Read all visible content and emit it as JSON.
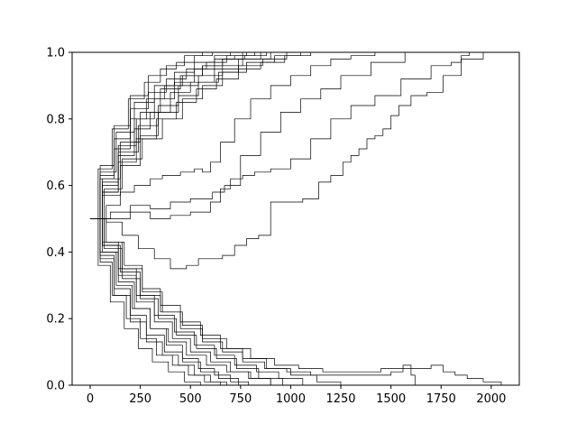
{
  "chart_data": {
    "type": "line",
    "title": "",
    "xlabel": "",
    "ylabel": "",
    "xlim": [
      -90,
      2140
    ],
    "ylim": [
      0.0,
      1.0
    ],
    "x_ticks": [
      0,
      250,
      500,
      750,
      1000,
      1250,
      1500,
      1750,
      2000
    ],
    "x_tick_labels": [
      "0",
      "250",
      "500",
      "750",
      "1000",
      "1250",
      "1500",
      "1750",
      "2000"
    ],
    "y_ticks": [
      0.0,
      0.2,
      0.4,
      0.6,
      0.8,
      1.0
    ],
    "y_tick_labels": [
      "0.0",
      "0.2",
      "0.4",
      "0.6",
      "0.8",
      "1.0"
    ],
    "grid": false,
    "legend": "none",
    "line_color": "#000000",
    "series": [
      {
        "x": [
          0,
          60,
          150,
          250,
          350,
          450,
          560,
          660,
          770,
          880
        ],
        "y": [
          0.5,
          0.62,
          0.73,
          0.82,
          0.89,
          0.93,
          0.96,
          0.98,
          0.99,
          1.0
        ]
      },
      {
        "x": [
          0,
          60,
          140,
          230,
          320,
          420,
          520,
          620,
          720,
          820
        ],
        "y": [
          0.5,
          0.6,
          0.72,
          0.8,
          0.86,
          0.91,
          0.95,
          0.98,
          0.99,
          1.0
        ]
      },
      {
        "x": [
          0,
          50,
          130,
          220,
          320,
          420,
          520,
          620,
          700
        ],
        "y": [
          0.5,
          0.64,
          0.76,
          0.85,
          0.9,
          0.94,
          0.97,
          0.99,
          1.0
        ]
      },
      {
        "x": [
          0,
          60,
          140,
          240,
          340,
          440,
          540,
          660,
          760,
          900
        ],
        "y": [
          0.5,
          0.58,
          0.7,
          0.78,
          0.84,
          0.9,
          0.93,
          0.96,
          0.98,
          1.0
        ]
      },
      {
        "x": [
          0,
          50,
          120,
          200,
          290,
          380,
          480,
          580,
          680,
          780
        ],
        "y": [
          0.5,
          0.63,
          0.74,
          0.83,
          0.88,
          0.92,
          0.95,
          0.97,
          0.99,
          1.0
        ]
      },
      {
        "x": [
          0,
          60,
          140,
          220,
          300,
          400,
          500,
          620,
          740,
          850
        ],
        "y": [
          0.5,
          0.61,
          0.69,
          0.77,
          0.82,
          0.88,
          0.91,
          0.95,
          0.98,
          1.0
        ]
      },
      {
        "x": [
          0,
          40,
          110,
          190,
          270,
          350,
          430,
          520,
          610
        ],
        "y": [
          0.5,
          0.65,
          0.77,
          0.86,
          0.91,
          0.95,
          0.97,
          0.99,
          1.0
        ]
      },
      {
        "x": [
          0,
          70,
          160,
          260,
          360,
          460,
          560,
          660,
          780,
          920,
          1050
        ],
        "y": [
          0.5,
          0.59,
          0.68,
          0.74,
          0.8,
          0.86,
          0.9,
          0.94,
          0.97,
          0.99,
          1.0
        ]
      },
      {
        "x": [
          0,
          50,
          120,
          200,
          280,
          370,
          460,
          560,
          660,
          760
        ],
        "y": [
          0.5,
          0.62,
          0.71,
          0.8,
          0.86,
          0.9,
          0.93,
          0.96,
          0.98,
          1.0
        ]
      },
      {
        "x": [
          0,
          60,
          150,
          250,
          340,
          440,
          540,
          640,
          740,
          860,
          980
        ],
        "y": [
          0.5,
          0.57,
          0.66,
          0.75,
          0.82,
          0.87,
          0.91,
          0.94,
          0.96,
          0.98,
          1.0
        ]
      },
      {
        "x": [
          0,
          50,
          120,
          200,
          290,
          380,
          470,
          560
        ],
        "y": [
          0.5,
          0.66,
          0.78,
          0.87,
          0.93,
          0.96,
          0.99,
          1.0
        ]
      },
      {
        "x": [
          0,
          60,
          140,
          230,
          330,
          430,
          530,
          630,
          740,
          850,
          970,
          1100
        ],
        "y": [
          0.5,
          0.58,
          0.67,
          0.74,
          0.8,
          0.85,
          0.89,
          0.92,
          0.95,
          0.97,
          0.99,
          1.0
        ]
      },
      {
        "x": [
          0,
          80,
          150,
          220,
          300,
          360,
          450,
          520,
          560,
          600,
          650,
          720,
          800,
          900,
          1000,
          1100,
          1200,
          1300,
          1420
        ],
        "y": [
          0.5,
          0.54,
          0.58,
          0.6,
          0.62,
          0.63,
          0.64,
          0.65,
          0.64,
          0.67,
          0.73,
          0.8,
          0.86,
          0.9,
          0.93,
          0.96,
          0.98,
          0.99,
          1.0
        ]
      },
      {
        "x": [
          0,
          100,
          200,
          300,
          400,
          500,
          560,
          610,
          670,
          750,
          850,
          950,
          1050,
          1150,
          1250,
          1400,
          1570
        ],
        "y": [
          0.5,
          0.52,
          0.54,
          0.53,
          0.55,
          0.56,
          0.56,
          0.58,
          0.6,
          0.69,
          0.76,
          0.82,
          0.86,
          0.89,
          0.93,
          0.97,
          1.0
        ]
      },
      {
        "x": [
          0,
          100,
          200,
          300,
          400,
          500,
          600,
          650,
          700,
          760,
          820,
          900,
          1000,
          1100,
          1200,
          1300,
          1420,
          1550,
          1700,
          1800,
          1850,
          1890
        ],
        "y": [
          0.5,
          0.5,
          0.52,
          0.5,
          0.51,
          0.52,
          0.55,
          0.59,
          0.62,
          0.63,
          0.64,
          0.65,
          0.68,
          0.74,
          0.8,
          0.84,
          0.87,
          0.92,
          0.96,
          0.97,
          0.99,
          1.0
        ]
      },
      {
        "x": [
          0,
          80,
          160,
          240,
          320,
          400,
          480,
          540,
          600,
          660,
          720,
          780,
          840,
          900,
          980,
          1060,
          1140,
          1200,
          1260,
          1300,
          1340,
          1380,
          1420,
          1460,
          1500,
          1540,
          1600,
          1680,
          1760,
          1850,
          1960
        ],
        "y": [
          0.5,
          0.49,
          0.45,
          0.41,
          0.38,
          0.35,
          0.36,
          0.38,
          0.38,
          0.39,
          0.42,
          0.44,
          0.45,
          0.55,
          0.55,
          0.56,
          0.61,
          0.63,
          0.67,
          0.69,
          0.71,
          0.74,
          0.75,
          0.77,
          0.81,
          0.84,
          0.87,
          0.88,
          0.93,
          0.98,
          1.0
        ]
      },
      {
        "x": [
          0,
          50,
          120,
          200,
          280,
          360,
          440,
          520,
          600,
          680
        ],
        "y": [
          0.5,
          0.38,
          0.27,
          0.19,
          0.13,
          0.09,
          0.06,
          0.03,
          0.01,
          0.0
        ]
      },
      {
        "x": [
          0,
          60,
          140,
          220,
          300,
          380,
          460,
          540,
          620,
          700,
          790
        ],
        "y": [
          0.5,
          0.4,
          0.31,
          0.23,
          0.17,
          0.12,
          0.08,
          0.05,
          0.03,
          0.01,
          0.0
        ]
      },
      {
        "x": [
          0,
          40,
          100,
          170,
          240,
          310,
          390,
          470,
          550
        ],
        "y": [
          0.5,
          0.36,
          0.25,
          0.17,
          0.11,
          0.07,
          0.04,
          0.01,
          0.0
        ]
      },
      {
        "x": [
          0,
          60,
          140,
          230,
          320,
          410,
          500,
          600,
          700,
          800,
          900
        ],
        "y": [
          0.5,
          0.42,
          0.33,
          0.25,
          0.19,
          0.14,
          0.1,
          0.07,
          0.04,
          0.02,
          0.0
        ]
      },
      {
        "x": [
          0,
          50,
          120,
          200,
          280,
          370,
          460,
          550,
          640,
          740
        ],
        "y": [
          0.5,
          0.39,
          0.29,
          0.21,
          0.15,
          0.1,
          0.07,
          0.04,
          0.02,
          0.0
        ]
      },
      {
        "x": [
          0,
          70,
          160,
          250,
          340,
          430,
          530,
          630,
          730,
          840,
          960
        ],
        "y": [
          0.5,
          0.41,
          0.32,
          0.26,
          0.2,
          0.15,
          0.11,
          0.08,
          0.05,
          0.02,
          0.0
        ]
      },
      {
        "x": [
          0,
          60,
          140,
          230,
          320,
          420,
          520,
          620,
          720,
          830,
          940,
          1060
        ],
        "y": [
          0.5,
          0.43,
          0.35,
          0.27,
          0.21,
          0.16,
          0.12,
          0.09,
          0.06,
          0.04,
          0.02,
          0.0
        ]
      },
      {
        "x": [
          0,
          50,
          110,
          180,
          250,
          330,
          410,
          490,
          570,
          650
        ],
        "y": [
          0.5,
          0.37,
          0.27,
          0.2,
          0.14,
          0.09,
          0.06,
          0.03,
          0.01,
          0.0
        ]
      },
      {
        "x": [
          0,
          80,
          170,
          260,
          350,
          450,
          550,
          650,
          760,
          880,
          1000,
          1130,
          1250
        ],
        "y": [
          0.5,
          0.43,
          0.36,
          0.29,
          0.24,
          0.19,
          0.15,
          0.11,
          0.08,
          0.05,
          0.03,
          0.01,
          0.0
        ]
      },
      {
        "x": [
          0,
          60,
          150,
          250,
          350,
          450,
          560,
          660,
          760,
          870,
          980,
          1100,
          1250,
          1400,
          1500,
          1560,
          1600,
          1620
        ],
        "y": [
          0.5,
          0.42,
          0.34,
          0.27,
          0.22,
          0.17,
          0.13,
          0.1,
          0.07,
          0.05,
          0.04,
          0.03,
          0.03,
          0.03,
          0.04,
          0.06,
          0.03,
          0.0
        ]
      },
      {
        "x": [
          0,
          70,
          160,
          260,
          360,
          460,
          560,
          680,
          800,
          920,
          1040,
          1160,
          1300,
          1450,
          1600,
          1700,
          1760,
          1820,
          1850,
          1880,
          1920,
          1960,
          2000,
          2050
        ],
        "y": [
          0.5,
          0.43,
          0.35,
          0.28,
          0.22,
          0.18,
          0.14,
          0.11,
          0.08,
          0.06,
          0.05,
          0.04,
          0.04,
          0.05,
          0.05,
          0.06,
          0.04,
          0.03,
          0.03,
          0.02,
          0.02,
          0.01,
          0.01,
          0.0
        ]
      },
      {
        "x": [
          0,
          50,
          130,
          210,
          300,
          390,
          480,
          580,
          680,
          790,
          900
        ],
        "y": [
          0.5,
          0.4,
          0.3,
          0.23,
          0.17,
          0.13,
          0.09,
          0.06,
          0.04,
          0.02,
          0.0
        ]
      }
    ]
  }
}
